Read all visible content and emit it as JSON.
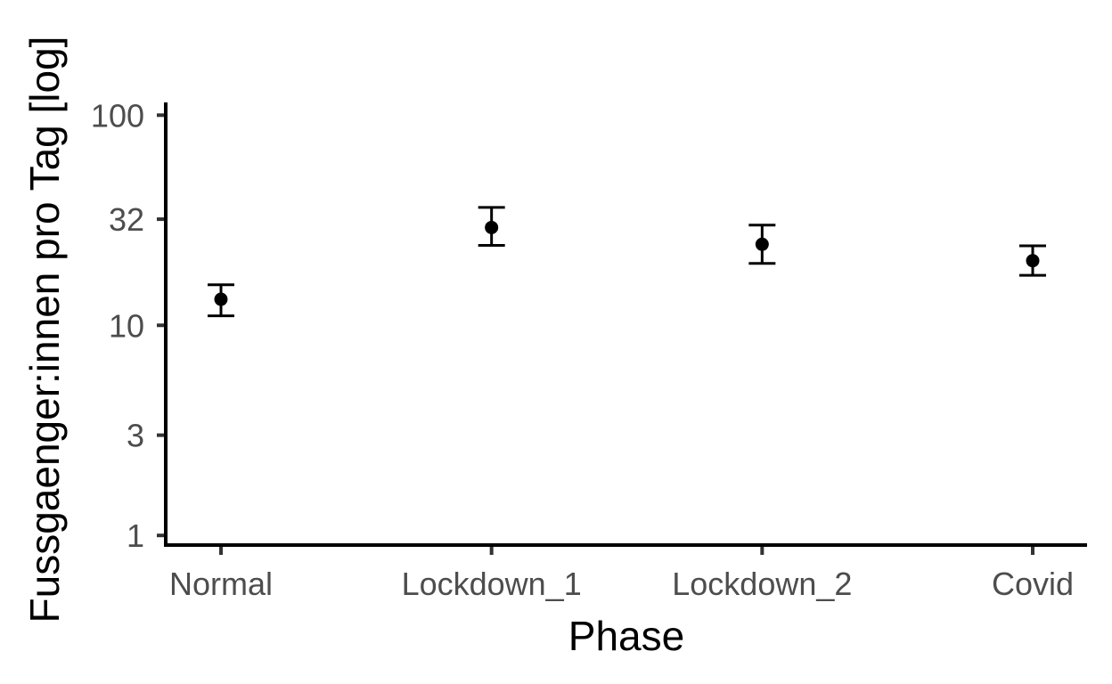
{
  "chart_data": {
    "type": "scatter",
    "subtype": "point-with-errorbars",
    "title": "",
    "xlabel": "Phase",
    "ylabel": "Fussgaenger:innen pro Tag [log]",
    "y_scale": "log",
    "ylim": [
      0.9,
      115
    ],
    "yticks": [
      1,
      3,
      10,
      32,
      100
    ],
    "ytick_labels": [
      "1",
      "3",
      "10",
      "32",
      "100"
    ],
    "categories": [
      "Normal",
      "Lockdown_1",
      "Lockdown_2",
      "Covid"
    ],
    "values": [
      13.3,
      29.2,
      24.3,
      20.3
    ],
    "lower": [
      11.1,
      24.0,
      19.7,
      17.3
    ],
    "upper": [
      15.6,
      36.4,
      30.0,
      23.9
    ],
    "grid": false,
    "legend": "none",
    "color": "#000000"
  }
}
